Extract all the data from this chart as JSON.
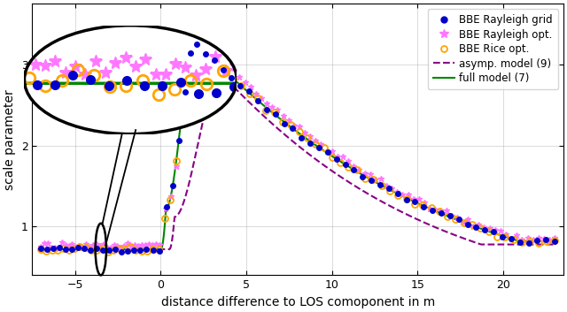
{
  "xlabel": "distance difference to LOS comoponent in m",
  "ylabel": "scale parameter",
  "xlim": [
    -7.5,
    23.5
  ],
  "ylim": [
    0.4,
    3.75
  ],
  "yticks": [
    1,
    2,
    3
  ],
  "xticks": [
    -5,
    0,
    5,
    10,
    15,
    20
  ],
  "legend_entries": [
    "BBE Rayleigh grid",
    "BBE Rayleigh opt.",
    "BBE Rice opt.",
    "asymp. model (9)",
    "full model (7)"
  ],
  "colors": {
    "rayleigh_grid": "#0000CC",
    "rayleigh_opt": "#FF77FF",
    "rice_opt": "#FFA500",
    "asymp": "#880088",
    "full": "#008800"
  },
  "flat_level": 0.72,
  "peak_full": 3.27,
  "peak_asymp": 2.88,
  "peak_x_full": 2.0,
  "peak_x_asymp": 3.5
}
